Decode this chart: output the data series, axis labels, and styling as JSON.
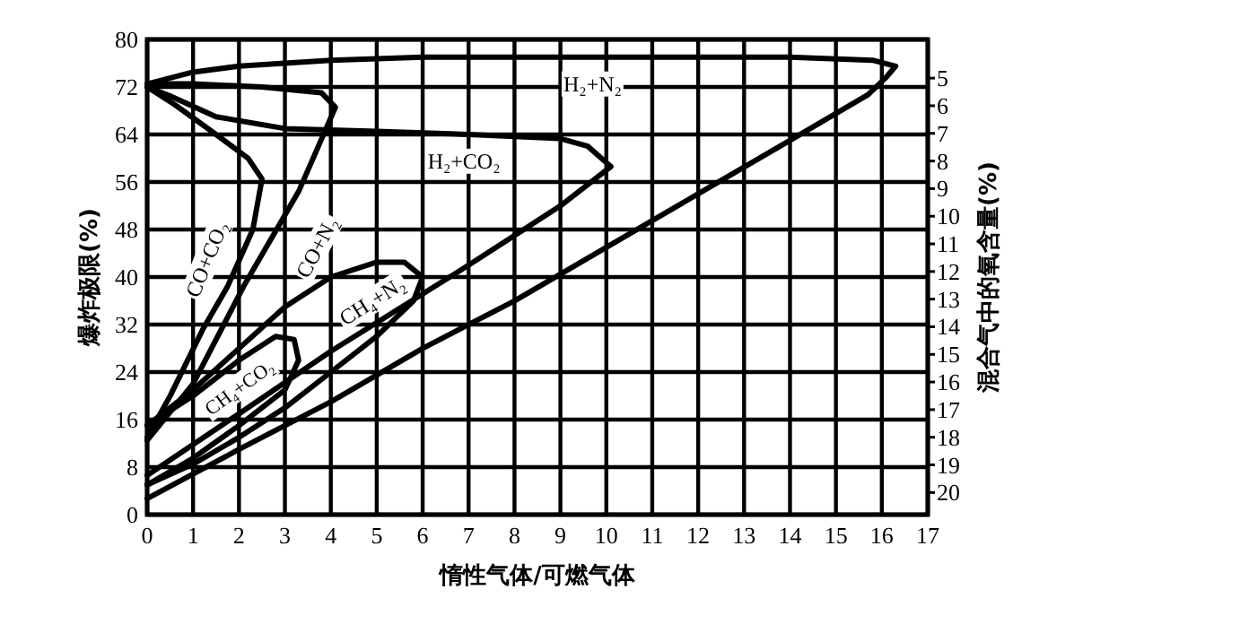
{
  "chart_data": {
    "type": "line",
    "xlabel": "惰性气体/可燃气体",
    "ylabel": "爆炸极限(%)",
    "y2label": "混合气中的氧含量(%)",
    "xlim": [
      0,
      17
    ],
    "xticks": [
      0,
      1,
      2,
      3,
      4,
      5,
      6,
      7,
      8,
      9,
      10,
      11,
      12,
      13,
      14,
      15,
      16,
      17
    ],
    "ylim": [
      0,
      80
    ],
    "yticks": [
      0,
      8,
      16,
      24,
      32,
      40,
      48,
      56,
      64,
      72,
      80
    ],
    "y2lim": [
      20.8,
      3.6
    ],
    "y2ticks": [
      5,
      6,
      7,
      8,
      9,
      10,
      11,
      12,
      13,
      14,
      15,
      16,
      17,
      18,
      19,
      20
    ],
    "grid": true,
    "marker": "none",
    "line_style": "solid",
    "series": [
      {
        "name": "H₂+N₂",
        "color": "#000000",
        "x": [
          0,
          2,
          4,
          6,
          8,
          10,
          12,
          14,
          15.7,
          16.1,
          16.3,
          15.8,
          14,
          12,
          10,
          8,
          6,
          4,
          2,
          1,
          0
        ],
        "values": [
          2.7,
          11,
          19,
          28,
          36,
          45,
          54,
          63,
          70.7,
          73.7,
          75.5,
          76.5,
          77,
          77,
          77,
          77,
          77,
          76.5,
          75.5,
          74.5,
          72.5
        ]
      },
      {
        "name": "H₂+CO₂",
        "color": "#000000",
        "x": [
          0,
          2,
          4,
          7,
          9,
          10.1,
          9.6,
          9,
          7,
          5,
          3,
          1.5,
          0.5,
          0
        ],
        "values": [
          6.6,
          17,
          27.5,
          42,
          52,
          58.6,
          62,
          63.3,
          64,
          64.5,
          65,
          67,
          70.5,
          72
        ]
      },
      {
        "name": "CO+CO₂",
        "color": "#000000",
        "x": [
          0,
          0.5,
          1.2,
          1.75,
          2.3,
          2.5,
          2.2,
          1.5,
          0.6,
          0
        ],
        "values": [
          13,
          20,
          31,
          38.4,
          48,
          56.5,
          60,
          64,
          69,
          72
        ]
      },
      {
        "name": "CO+N₂",
        "color": "#000000",
        "x": [
          0,
          1,
          2.1,
          3.3,
          4.1,
          3.8,
          2.5,
          1,
          0
        ],
        "values": [
          12.5,
          22,
          38.4,
          54.4,
          68.6,
          71,
          72,
          72.5,
          72.5
        ]
      },
      {
        "name": "CH₄+N₂",
        "color": "#000000",
        "x": [
          0,
          1,
          2,
          3,
          4,
          5,
          5.8,
          6,
          5.6,
          5,
          4,
          3,
          2,
          1,
          0
        ],
        "values": [
          5,
          8.5,
          13,
          18,
          24,
          30,
          36,
          40,
          42.5,
          42.5,
          40,
          35,
          28,
          21,
          15
        ]
      },
      {
        "name": "CH₄+CO₂",
        "color": "#000000",
        "x": [
          0,
          1,
          2,
          3,
          3.3,
          3.2,
          2.8,
          2,
          1,
          0
        ],
        "values": [
          5,
          9.5,
          15,
          21,
          26,
          29.5,
          30,
          26,
          20,
          15
        ]
      }
    ]
  }
}
